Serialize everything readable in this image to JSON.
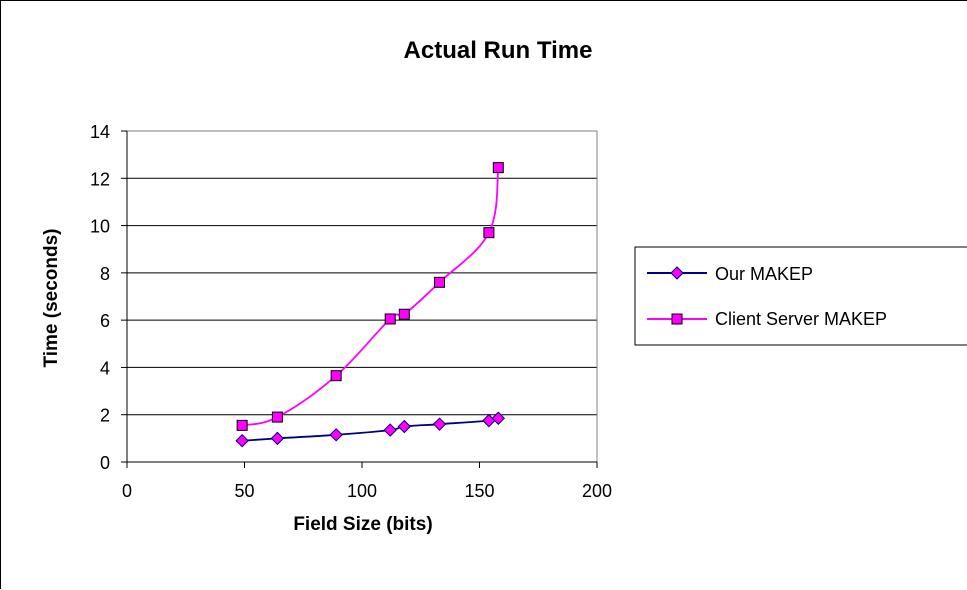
{
  "chart_data": {
    "type": "line",
    "title": "Actual Run Time",
    "xlabel": "Field Size (bits)",
    "ylabel": "Time (seconds)",
    "xlim": [
      0,
      200
    ],
    "ylim": [
      0,
      14
    ],
    "x_ticks": [
      0,
      50,
      100,
      150,
      200
    ],
    "y_ticks": [
      0,
      2,
      4,
      6,
      8,
      10,
      12,
      14
    ],
    "grid": "horizontal",
    "legend_position": "right",
    "series": [
      {
        "name": "Our MAKEP",
        "line_color": "#000080",
        "marker": "diamond",
        "marker_color": "#ff00ff",
        "x": [
          49,
          64,
          89,
          112,
          118,
          133,
          154,
          158
        ],
        "y": [
          0.9,
          1.0,
          1.15,
          1.35,
          1.5,
          1.6,
          1.75,
          1.85
        ]
      },
      {
        "name": "Client Server MAKEP",
        "line_color": "#ff00ff",
        "marker": "square",
        "marker_color": "#ff00ff",
        "x": [
          49,
          64,
          89,
          112,
          118,
          133,
          154,
          158
        ],
        "y": [
          1.55,
          1.9,
          3.65,
          6.05,
          6.25,
          7.6,
          9.7,
          12.45
        ]
      }
    ]
  }
}
